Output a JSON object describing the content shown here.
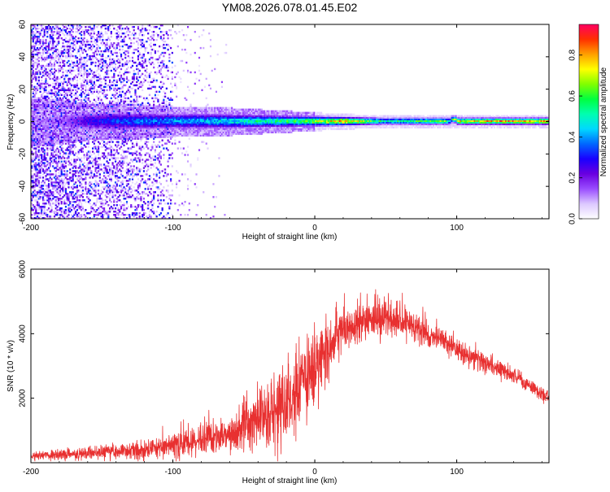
{
  "title": "YM08.2026.078.01.45.E02",
  "colors": {
    "snr_line": "#e83030",
    "frame": "#000000",
    "background": "#ffffff"
  },
  "chart_data": [
    {
      "type": "heatmap",
      "name": "spectrogram",
      "xlabel": "Height of straight line (km)",
      "ylabel": "Frequency (Hz)",
      "xlim": [
        -200,
        165
      ],
      "ylim": [
        -60,
        60
      ],
      "x_ticks": [
        -200,
        -100,
        0,
        100
      ],
      "x_tick_labels": [
        "-200",
        "-100",
        "0",
        "100"
      ],
      "y_ticks": [
        -60,
        -40,
        -20,
        0,
        20,
        40,
        60
      ],
      "y_tick_labels": [
        "-60",
        "-40",
        "-20",
        "0",
        "20",
        "40",
        "60"
      ],
      "colorbar": {
        "label": "Normalized spectral amplitude",
        "range": [
          0,
          0.95
        ],
        "ticks": [
          0.0,
          0.2,
          0.4,
          0.6,
          0.8
        ],
        "tick_labels": [
          "0.0",
          "0.2",
          "0.4",
          "0.6",
          "0.8"
        ],
        "colormap": [
          "#ffffff",
          "#dcc8ff",
          "#9a4dff",
          "#6a00e0",
          "#1a00ff",
          "#0066ff",
          "#00d8ff",
          "#00ffb0",
          "#00ff40",
          "#80ff00",
          "#ffff00",
          "#ffa000",
          "#ff3000",
          "#ff0060"
        ]
      },
      "ridge_profile": {
        "x": [
          -200,
          -175,
          -160,
          -140,
          -120,
          -100,
          -80,
          -60,
          -40,
          -20,
          0,
          20,
          50,
          90,
          95,
          100,
          130,
          165
        ],
        "peak_amplitude": [
          0.1,
          0.15,
          0.3,
          0.35,
          0.4,
          0.42,
          0.45,
          0.5,
          0.55,
          0.6,
          0.7,
          0.85,
          0.55,
          0.7,
          0.5,
          0.8,
          0.85,
          0.85
        ],
        "half_width_hz": [
          8,
          7,
          6,
          6,
          5.5,
          5,
          5,
          4.5,
          4,
          3.5,
          3,
          2.5,
          2,
          2,
          2,
          2,
          2,
          2
        ]
      },
      "scatter_zone": {
        "x_range": [
          -200,
          -100
        ],
        "extends_to": -60,
        "freq_range": [
          -60,
          60
        ],
        "amplitude_range": [
          0.05,
          0.35
        ]
      }
    },
    {
      "type": "line",
      "name": "snr",
      "xlabel": "Height of straight line (km)",
      "ylabel": "SNR (10 * v/v)",
      "xlim": [
        -200,
        165
      ],
      "ylim": [
        0,
        6000
      ],
      "x_ticks": [
        -200,
        -100,
        0,
        100
      ],
      "x_tick_labels": [
        "-200",
        "-100",
        "0",
        "100"
      ],
      "y_ticks": [
        2000,
        4000,
        6000
      ],
      "y_tick_labels": [
        "2000",
        "4000",
        "6000"
      ],
      "envelope": {
        "x": [
          -200,
          -180,
          -160,
          -140,
          -120,
          -100,
          -80,
          -60,
          -50,
          -40,
          -30,
          -20,
          -10,
          0,
          10,
          20,
          30,
          40,
          50,
          60,
          70,
          80,
          90,
          100,
          110,
          120,
          130,
          140,
          150,
          165
        ],
        "base": [
          200,
          250,
          300,
          350,
          400,
          550,
          700,
          900,
          1100,
          1300,
          1600,
          1900,
          2400,
          3000,
          3600,
          4100,
          4400,
          4500,
          4450,
          4400,
          4200,
          4000,
          3800,
          3500,
          3300,
          3100,
          2900,
          2700,
          2400,
          2000
        ],
        "spread": [
          150,
          180,
          200,
          250,
          300,
          400,
          500,
          700,
          900,
          1100,
          1300,
          1400,
          1400,
          1300,
          1000,
          800,
          700,
          650,
          600,
          550,
          500,
          450,
          400,
          380,
          350,
          330,
          300,
          280,
          260,
          240
        ]
      }
    }
  ]
}
